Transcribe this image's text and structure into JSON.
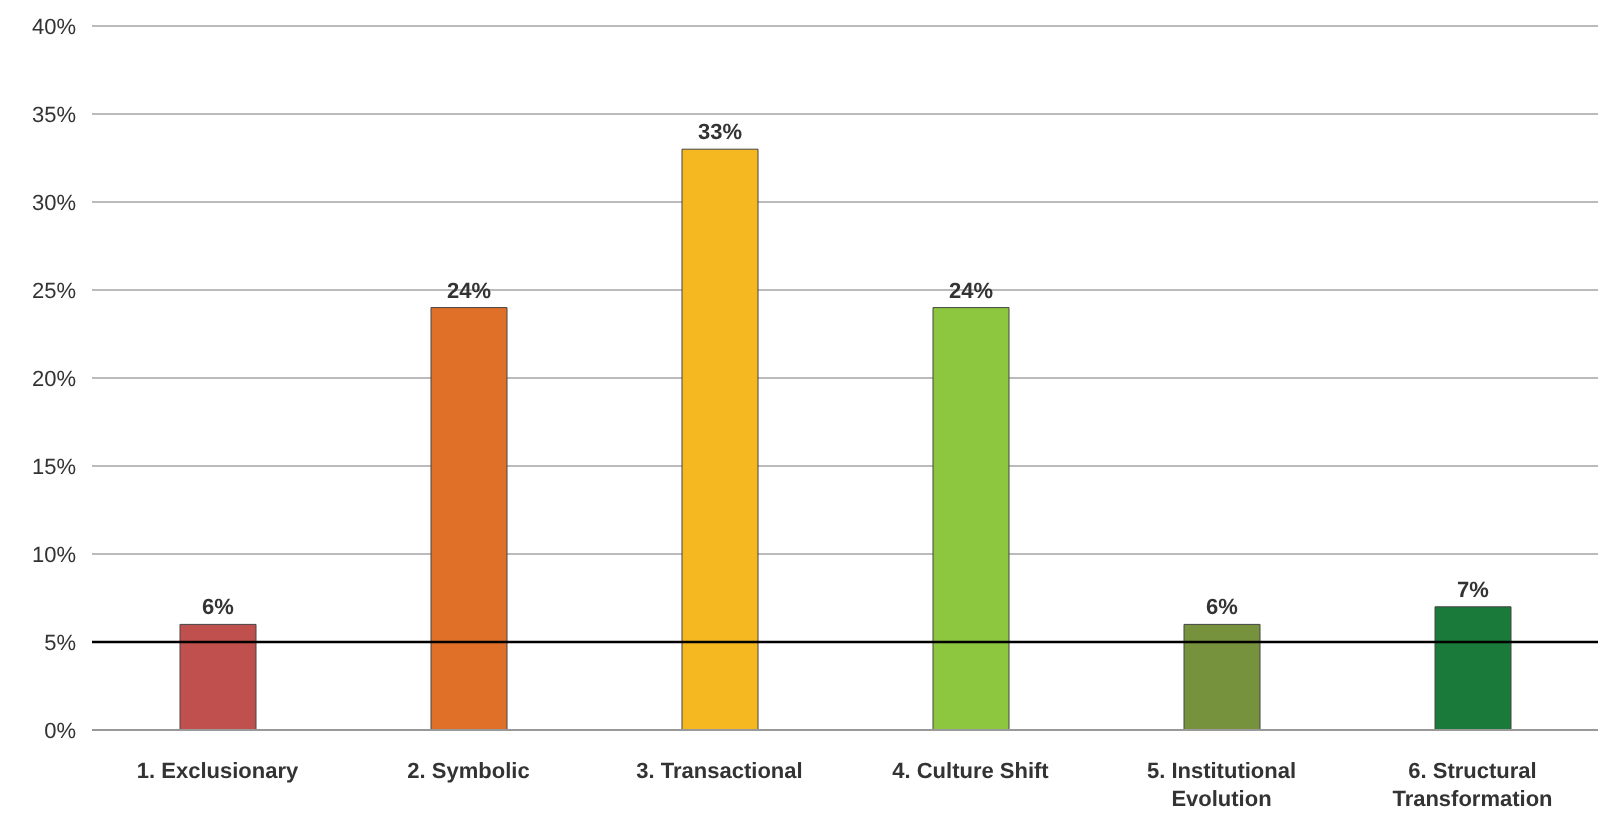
{
  "chart_data": {
    "type": "bar",
    "categories": [
      "1. Exclusionary",
      "2. Symbolic",
      "3. Transactional",
      "4. Culture Shift",
      "5. Institutional Evolution",
      "6. Structural Transformation"
    ],
    "values": [
      6,
      24,
      33,
      24,
      6,
      7
    ],
    "colors": [
      "#c0504d",
      "#e07028",
      "#f5b820",
      "#8dc63f",
      "#76923c",
      "#1a7a3a"
    ],
    "value_labels": [
      "6%",
      "24%",
      "33%",
      "24%",
      "6%",
      "7%"
    ],
    "ylim": [
      0,
      40
    ],
    "yticks": [
      {
        "value": 0,
        "label": "0%"
      },
      {
        "value": 5,
        "label": "5%"
      },
      {
        "value": 10,
        "label": "10%"
      },
      {
        "value": 15,
        "label": "15%"
      },
      {
        "value": 20,
        "label": "20%"
      },
      {
        "value": 25,
        "label": "25%"
      },
      {
        "value": 30,
        "label": "30%"
      },
      {
        "value": 35,
        "label": "35%"
      },
      {
        "value": 40,
        "label": "40%"
      }
    ],
    "grid": "y",
    "ref_lines": [
      {
        "axis": "y",
        "value": 5,
        "color": "#000000"
      }
    ],
    "legend": false
  }
}
